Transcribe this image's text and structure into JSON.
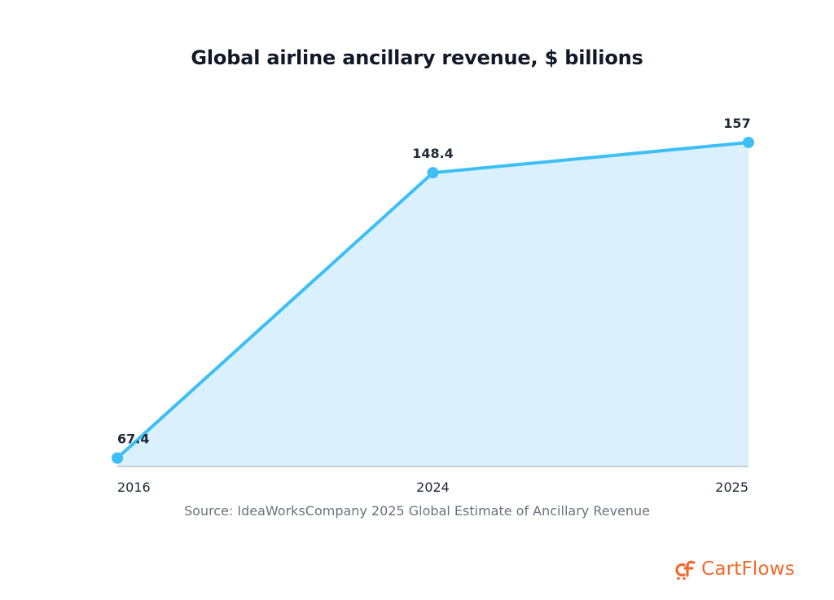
{
  "chart_data": {
    "type": "area",
    "title": "Global airline ancillary revenue, $ billions",
    "categories": [
      "2016",
      "2024",
      "2025"
    ],
    "values": [
      67.4,
      148.4,
      157
    ],
    "data_labels": [
      "67.4",
      "148.4",
      "157"
    ],
    "ylim": [
      65,
      160
    ],
    "grid": false,
    "legend": "none",
    "line_color": "#3dbff5",
    "fill_color": "#daf1fd",
    "source": "Source: IdeaWorksCompany 2025 Global Estimate of Ancillary Revenue"
  },
  "brand": {
    "name": "CartFlows",
    "color": "#f0692c",
    "icon": "cart-flows-logo-icon"
  }
}
